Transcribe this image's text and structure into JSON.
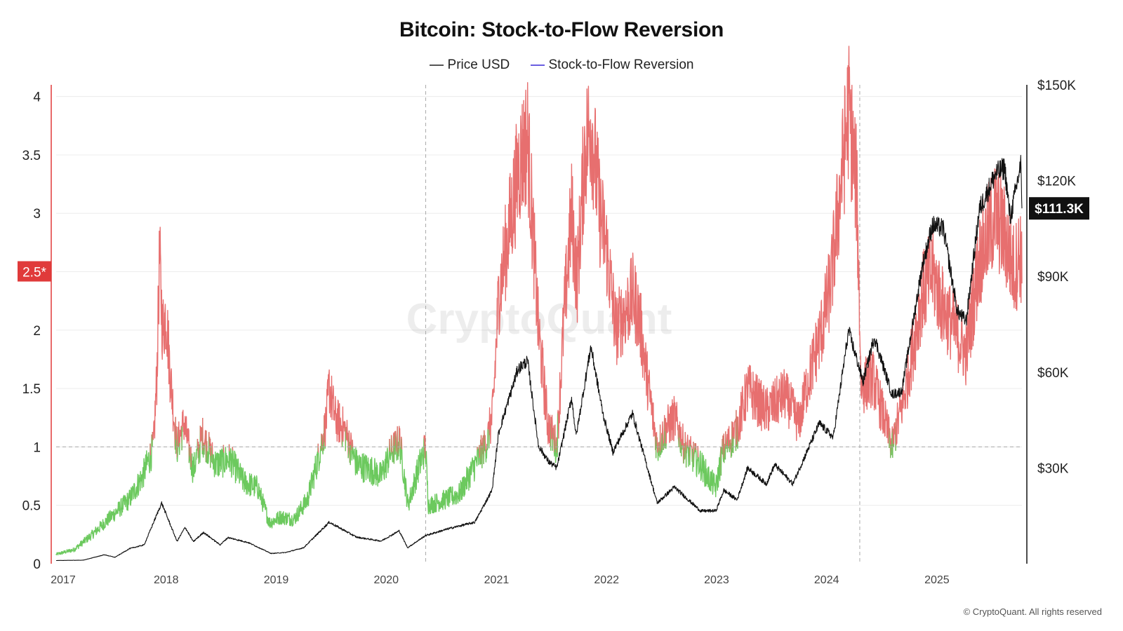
{
  "header": {
    "title": "Bitcoin: Stock-to-Flow Reversion"
  },
  "legend": [
    {
      "label": "Price USD",
      "color": "#444444"
    },
    {
      "label": "Stock-to-Flow Reversion",
      "color": "#6666dd"
    }
  ],
  "watermark": "CryptoQuant",
  "copyright": "© CryptoQuant. All rights reserved",
  "colors": {
    "above_threshold": "#e76f6f",
    "below_threshold": "#6cc95e",
    "price_line": "#111111",
    "threshold_marker": "#e03a3a",
    "price_marker": "#111111"
  },
  "chart_data": {
    "type": "line",
    "title": "Bitcoin: Stock-to-Flow Reversion",
    "x_ticks": [
      "2017",
      "2018",
      "2019",
      "2020",
      "2021",
      "2022",
      "2023",
      "2024",
      "2025"
    ],
    "xlim": [
      "2017-01-01",
      "2025-10-10"
    ],
    "left_axis": {
      "ticks": [
        "0",
        "0.5",
        "1",
        "1.5",
        "2",
        "2.5",
        "3",
        "3.5",
        "4"
      ],
      "ylim": [
        0,
        4.1
      ]
    },
    "right_axis": {
      "ticks": [
        "$30K",
        "$60K",
        "$90K",
        "$120K",
        "$150K"
      ],
      "ylim": [
        0,
        150000
      ]
    },
    "threshold": {
      "value": 1,
      "line": "dashed"
    },
    "threshold_marker": {
      "value": 2.5,
      "label": "2.5*"
    },
    "last_price_marker": {
      "value": 111300,
      "label": "$111.3K"
    },
    "halving_lines": [
      "2020-05-11",
      "2024-04-20"
    ],
    "grid": "horizontal",
    "series": [
      {
        "name": "Stock-to-Flow Reversion",
        "axis": "left",
        "colored_by_threshold": true,
        "points": [
          [
            "2017-01-01",
            0.08
          ],
          [
            "2017-03-01",
            0.12
          ],
          [
            "2017-05-01",
            0.25
          ],
          [
            "2017-07-01",
            0.4
          ],
          [
            "2017-09-01",
            0.55
          ],
          [
            "2017-10-15",
            0.75
          ],
          [
            "2017-11-20",
            1.0
          ],
          [
            "2017-12-01",
            1.6
          ],
          [
            "2017-12-10",
            2.62
          ],
          [
            "2017-12-20",
            2.0
          ],
          [
            "2018-01-01",
            2.15
          ],
          [
            "2018-01-15",
            1.6
          ],
          [
            "2018-02-05",
            1.0
          ],
          [
            "2018-03-01",
            1.2
          ],
          [
            "2018-04-01",
            0.8
          ],
          [
            "2018-05-01",
            1.1
          ],
          [
            "2018-06-15",
            0.85
          ],
          [
            "2018-08-01",
            0.9
          ],
          [
            "2018-09-15",
            0.7
          ],
          [
            "2018-11-01",
            0.65
          ],
          [
            "2018-12-10",
            0.35
          ],
          [
            "2019-01-15",
            0.4
          ],
          [
            "2019-03-01",
            0.38
          ],
          [
            "2019-04-15",
            0.55
          ],
          [
            "2019-05-15",
            0.85
          ],
          [
            "2019-06-15",
            1.2
          ],
          [
            "2019-06-26",
            1.52
          ],
          [
            "2019-07-15",
            1.25
          ],
          [
            "2019-08-15",
            1.15
          ],
          [
            "2019-09-25",
            0.85
          ],
          [
            "2019-11-15",
            0.8
          ],
          [
            "2019-12-15",
            0.75
          ],
          [
            "2020-01-15",
            0.95
          ],
          [
            "2020-02-15",
            1.05
          ],
          [
            "2020-03-13",
            0.5
          ],
          [
            "2020-04-15",
            0.8
          ],
          [
            "2020-05-10",
            1.0
          ],
          [
            "2020-05-20",
            0.5
          ],
          [
            "2020-07-15",
            0.55
          ],
          [
            "2020-09-01",
            0.6
          ],
          [
            "2020-11-01",
            0.9
          ],
          [
            "2020-12-01",
            1.05
          ],
          [
            "2020-12-20",
            1.3
          ],
          [
            "2021-01-08",
            2.3
          ],
          [
            "2021-02-20",
            3.0
          ],
          [
            "2021-03-15",
            3.4
          ],
          [
            "2021-04-14",
            3.65
          ],
          [
            "2021-05-20",
            2.0
          ],
          [
            "2021-06-20",
            1.2
          ],
          [
            "2021-07-20",
            1.0
          ],
          [
            "2021-08-15",
            2.2
          ],
          [
            "2021-09-07",
            3.0
          ],
          [
            "2021-09-25",
            2.4
          ],
          [
            "2021-10-20",
            3.5
          ],
          [
            "2021-11-10",
            3.8
          ],
          [
            "2021-12-10",
            3.0
          ],
          [
            "2022-01-01",
            2.7
          ],
          [
            "2022-02-01",
            2.0
          ],
          [
            "2022-03-30",
            2.3
          ],
          [
            "2022-04-20",
            2.1
          ],
          [
            "2022-05-15",
            1.6
          ],
          [
            "2022-06-18",
            1.0
          ],
          [
            "2022-07-15",
            1.15
          ],
          [
            "2022-08-15",
            1.25
          ],
          [
            "2022-09-15",
            1.0
          ],
          [
            "2022-11-09",
            0.85
          ],
          [
            "2022-12-01",
            0.75
          ],
          [
            "2022-12-30",
            0.65
          ],
          [
            "2023-01-20",
            0.95
          ],
          [
            "2023-03-10",
            1.15
          ],
          [
            "2023-04-15",
            1.5
          ],
          [
            "2023-06-15",
            1.3
          ],
          [
            "2023-08-15",
            1.45
          ],
          [
            "2023-10-01",
            1.2
          ],
          [
            "2023-10-25",
            1.5
          ],
          [
            "2023-12-15",
            2.0
          ],
          [
            "2024-01-15",
            2.4
          ],
          [
            "2024-03-14",
            3.9
          ],
          [
            "2024-04-10",
            3.2
          ],
          [
            "2024-04-25",
            1.5
          ],
          [
            "2024-06-01",
            1.6
          ],
          [
            "2024-08-05",
            1.0
          ],
          [
            "2024-09-20",
            1.5
          ],
          [
            "2024-11-13",
            2.3
          ],
          [
            "2024-12-17",
            2.5
          ],
          [
            "2025-01-20",
            2.2
          ],
          [
            "2025-03-01",
            2.0
          ],
          [
            "2025-04-08",
            1.8
          ],
          [
            "2025-05-22",
            2.6
          ],
          [
            "2025-07-14",
            3.0
          ],
          [
            "2025-08-14",
            2.8
          ],
          [
            "2025-09-15",
            2.5
          ],
          [
            "2025-10-06",
            2.7
          ],
          [
            "2025-10-10",
            2.4
          ]
        ]
      },
      {
        "name": "Price USD",
        "axis": "right",
        "points": [
          [
            "2017-01-01",
            1000
          ],
          [
            "2017-04-01",
            1100
          ],
          [
            "2017-06-10",
            2800
          ],
          [
            "2017-07-15",
            2000
          ],
          [
            "2017-09-01",
            4700
          ],
          [
            "2017-10-20",
            5900
          ],
          [
            "2017-12-17",
            19000
          ],
          [
            "2018-02-06",
            7000
          ],
          [
            "2018-03-05",
            11400
          ],
          [
            "2018-04-01",
            6900
          ],
          [
            "2018-05-05",
            9800
          ],
          [
            "2018-06-29",
            5900
          ],
          [
            "2018-07-25",
            8200
          ],
          [
            "2018-10-01",
            6600
          ],
          [
            "2018-12-15",
            3200
          ],
          [
            "2019-02-01",
            3500
          ],
          [
            "2019-04-02",
            5000
          ],
          [
            "2019-06-26",
            13000
          ],
          [
            "2019-09-25",
            8300
          ],
          [
            "2019-12-15",
            7100
          ],
          [
            "2020-02-13",
            10300
          ],
          [
            "2020-03-12",
            5000
          ],
          [
            "2020-05-10",
            8800
          ],
          [
            "2020-07-27",
            11000
          ],
          [
            "2020-10-21",
            13000
          ],
          [
            "2020-12-17",
            23000
          ],
          [
            "2021-01-08",
            41000
          ],
          [
            "2021-03-13",
            61000
          ],
          [
            "2021-04-14",
            63500
          ],
          [
            "2021-05-20",
            37000
          ],
          [
            "2021-06-22",
            32000
          ],
          [
            "2021-07-20",
            30000
          ],
          [
            "2021-09-07",
            52000
          ],
          [
            "2021-09-22",
            40000
          ],
          [
            "2021-11-10",
            68000
          ],
          [
            "2021-12-20",
            47000
          ],
          [
            "2022-01-22",
            35000
          ],
          [
            "2022-03-28",
            47000
          ],
          [
            "2022-06-18",
            19000
          ],
          [
            "2022-08-14",
            24000
          ],
          [
            "2022-11-09",
            16500
          ],
          [
            "2022-12-30",
            16600
          ],
          [
            "2023-01-25",
            23000
          ],
          [
            "2023-03-10",
            20000
          ],
          [
            "2023-04-14",
            30000
          ],
          [
            "2023-06-15",
            25000
          ],
          [
            "2023-07-13",
            31000
          ],
          [
            "2023-09-11",
            25000
          ],
          [
            "2023-10-25",
            34500
          ],
          [
            "2023-12-08",
            44000
          ],
          [
            "2024-01-23",
            39500
          ],
          [
            "2024-03-14",
            73000
          ],
          [
            "2024-05-01",
            57000
          ],
          [
            "2024-06-07",
            71000
          ],
          [
            "2024-08-05",
            53000
          ],
          [
            "2024-09-06",
            54000
          ],
          [
            "2024-11-13",
            93000
          ],
          [
            "2024-12-17",
            106000
          ],
          [
            "2025-01-22",
            105000
          ],
          [
            "2025-03-10",
            79000
          ],
          [
            "2025-04-08",
            76000
          ],
          [
            "2025-05-22",
            111000
          ],
          [
            "2025-07-14",
            122000
          ],
          [
            "2025-08-14",
            124000
          ],
          [
            "2025-09-01",
            108000
          ],
          [
            "2025-10-06",
            125000
          ],
          [
            "2025-10-10",
            111300
          ]
        ]
      }
    ]
  }
}
